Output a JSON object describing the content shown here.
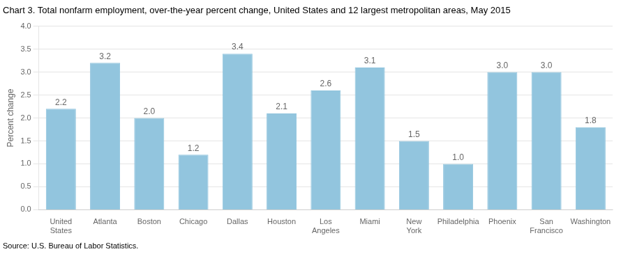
{
  "chart_data": {
    "type": "bar",
    "title": "Chart 3. Total nonfarm employment, over-the-year percent change, United States and 12 largest metropolitan areas, May 2015",
    "ylabel": "Percent change",
    "annotations": [
      "Source: U.S. Bureau of Labor Statistics."
    ],
    "categories": [
      "United\nStates",
      "Atlanta",
      "Boston",
      "Chicago",
      "Dallas",
      "Houston",
      "Los\nAngeles",
      "Miami",
      "New\nYork",
      "Philadelphia",
      "Phoenix",
      "San\nFrancisco",
      "Washington"
    ],
    "values": [
      2.2,
      3.2,
      2.0,
      1.2,
      3.4,
      2.1,
      2.6,
      3.1,
      1.5,
      1.0,
      3.0,
      3.0,
      1.8
    ],
    "value_labels": [
      "2.2",
      "3.2",
      "2.0",
      "1.2",
      "3.4",
      "2.1",
      "2.6",
      "3.1",
      "1.5",
      "1.0",
      "3.0",
      "3.0",
      "1.8"
    ],
    "data_labels": true,
    "color": "#92C5DE",
    "ylim": [
      0,
      4.0
    ],
    "yticks": [
      {
        "value": 0.0,
        "label": "0.0"
      },
      0.5,
      {
        "value": 1.0,
        "label": "1.0"
      },
      1.5,
      {
        "value": 2.0,
        "label": "2.0"
      },
      2.5,
      {
        "value": 3.0,
        "label": "3.0"
      },
      3.5,
      {
        "value": 4.0,
        "label": "4.0"
      }
    ],
    "grid": true
  }
}
